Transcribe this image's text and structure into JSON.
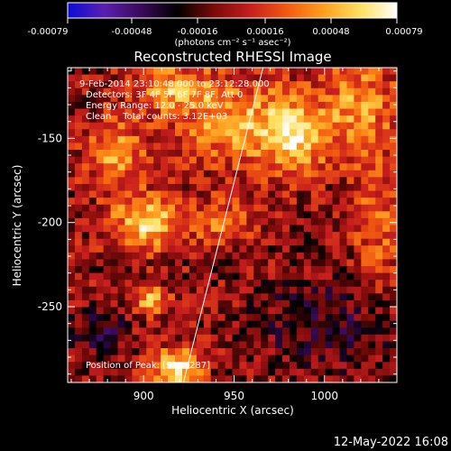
{
  "colors": {
    "background": "#000000",
    "foreground": "#ffffff"
  },
  "colorbar": {
    "ticks": [
      "-0.00079",
      "-0.00048",
      "-0.00016",
      "0.00016",
      "0.00048",
      "0.00079"
    ],
    "unit_label": "(photons cm⁻² s⁻¹ asec⁻²)",
    "range": [
      -0.00079,
      0.00079
    ],
    "palette": [
      "#0b0bd8",
      "#5a1fb0",
      "#3a0a5a",
      "#000000",
      "#7a0a0a",
      "#c81e1e",
      "#f25a10",
      "#ffa020",
      "#ffe060",
      "#ffffff"
    ]
  },
  "chart_data": {
    "type": "heatmap",
    "title": "Reconstructed RHESSI Image",
    "xlabel": "Heliocentric X (arcsec)",
    "ylabel": "Heliocentric Y (arcsec)",
    "xlim": [
      858,
      1040
    ],
    "ylim": [
      -295,
      -108
    ],
    "xticks": [
      900,
      950,
      1000
    ],
    "yticks": [
      -250,
      -200,
      -150
    ],
    "info_lines": [
      "9-Feb-2014 23:10:48.000 to 23:12:28.000",
      "Detectors: 3F 4F 5F 6F 7F 8F, Att 0",
      "Energy Range: 12.0 - 25.0 keV",
      "Clean    Total counts: 3.12E+03"
    ],
    "peak_label": "Position of Peak: [918,-287]",
    "peak": [
      918,
      -287
    ],
    "limb_line": [
      [
        922,
        -295
      ],
      [
        966,
        -108
      ]
    ],
    "sources": [
      {
        "x": 918,
        "y": -287,
        "sx": 9,
        "sy": 8,
        "amp": 1.0
      },
      {
        "x": 905,
        "y": -246,
        "sx": 6,
        "sy": 6,
        "amp": 0.75
      },
      {
        "x": 902,
        "y": -200,
        "sx": 14,
        "sy": 11,
        "amp": 0.8
      },
      {
        "x": 885,
        "y": -160,
        "sx": 12,
        "sy": 14,
        "amp": 0.6
      },
      {
        "x": 950,
        "y": -140,
        "sx": 22,
        "sy": 18,
        "amp": 0.62
      },
      {
        "x": 985,
        "y": -148,
        "sx": 13,
        "sy": 16,
        "amp": 0.72
      },
      {
        "x": 1020,
        "y": -130,
        "sx": 14,
        "sy": 22,
        "amp": 0.55
      },
      {
        "x": 915,
        "y": -120,
        "sx": 16,
        "sy": 10,
        "amp": 0.55
      },
      {
        "x": 1030,
        "y": -200,
        "sx": 10,
        "sy": 26,
        "amp": 0.4
      },
      {
        "x": 945,
        "y": -200,
        "sx": 12,
        "sy": 10,
        "amp": 0.45
      },
      {
        "x": 875,
        "y": -265,
        "sx": 10,
        "sy": 10,
        "amp": -0.35
      },
      {
        "x": 1000,
        "y": -260,
        "sx": 26,
        "sy": 20,
        "amp": -0.3
      }
    ]
  },
  "timestamp": "12-May-2022 16:08"
}
